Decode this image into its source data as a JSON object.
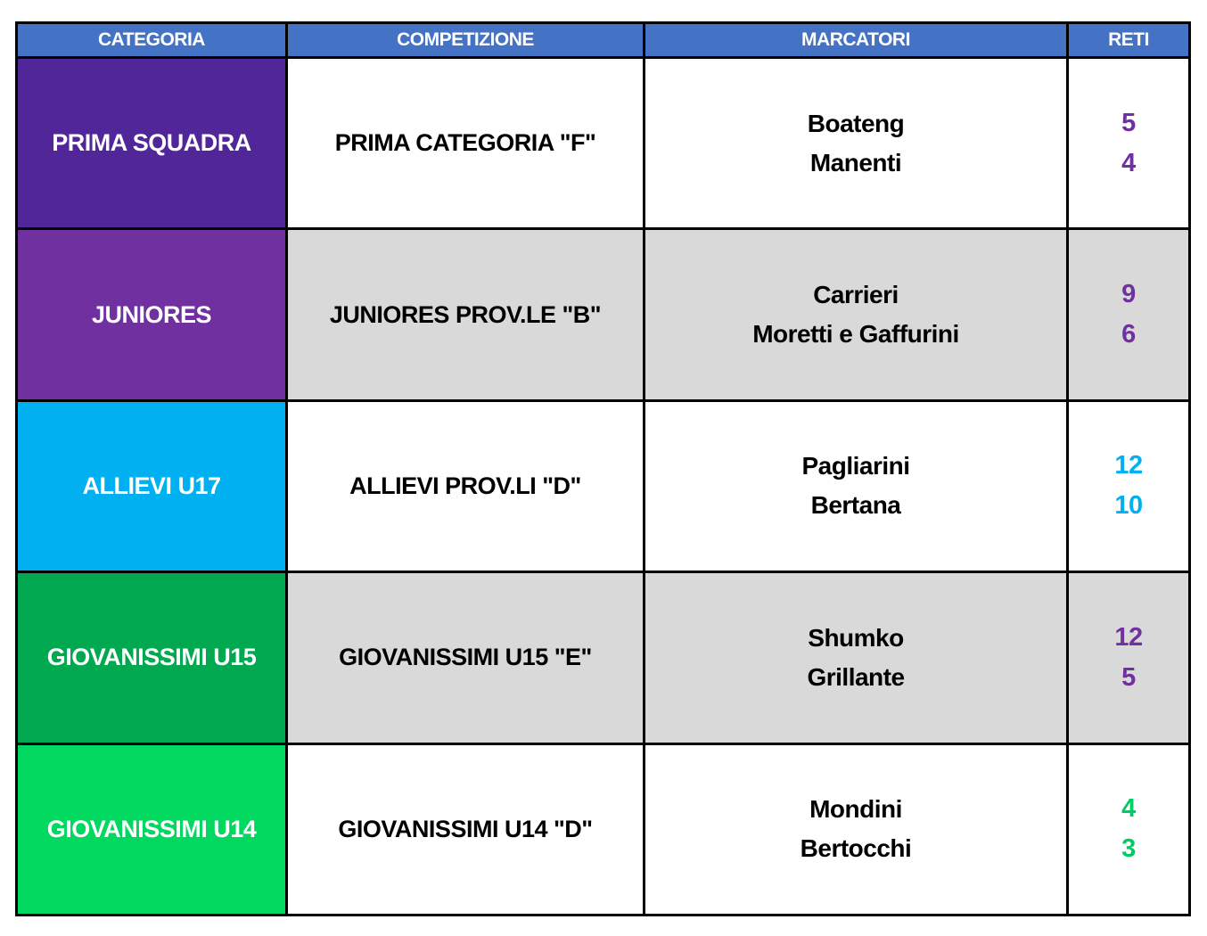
{
  "headers": [
    "CATEGORIA",
    "COMPETIZIONE",
    "MARCATORI",
    "RETI"
  ],
  "colors": {
    "header": "#4472C4",
    "alt_row": "#D9D9D9"
  },
  "rows": [
    {
      "categoria": "PRIMA SQUADRA",
      "cat_color": "#512698",
      "competizione": "PRIMA CATEGORIA \"F\"",
      "marcatori": [
        "Boateng",
        "Manenti"
      ],
      "reti": [
        "5",
        "4"
      ],
      "reti_color": "#7030A0",
      "shade": "white"
    },
    {
      "categoria": "JUNIORES",
      "cat_color": "#7030A0",
      "competizione": "JUNIORES PROV.LE \"B\"",
      "marcatori": [
        "Carrieri",
        "Moretti e Gaffurini"
      ],
      "reti": [
        "9",
        "6"
      ],
      "reti_color": "#7030A0",
      "shade": "grey"
    },
    {
      "categoria": "ALLIEVI U17",
      "cat_color": "#00B0F0",
      "competizione": "ALLIEVI PROV.LI \"D\"",
      "marcatori": [
        "Pagliarini",
        "Bertana"
      ],
      "reti": [
        "12",
        "10"
      ],
      "reti_color": "#00B0F0",
      "shade": "white"
    },
    {
      "categoria": "GIOVANISSIMI U15",
      "cat_color": "#00A84F",
      "competizione": "GIOVANISSIMI U15 \"E\"",
      "marcatori": [
        "Shumko",
        "Grillante"
      ],
      "reti": [
        "12",
        "5"
      ],
      "reti_color": "#7030A0",
      "shade": "grey"
    },
    {
      "categoria": "GIOVANISSIMI U14",
      "cat_color": "#00D85F",
      "competizione": "GIOVANISSIMI U14 \"D\"",
      "marcatori": [
        "Mondini",
        "Bertocchi"
      ],
      "reti": [
        "4",
        "3"
      ],
      "reti_color": "#00CC66",
      "shade": "white"
    }
  ]
}
